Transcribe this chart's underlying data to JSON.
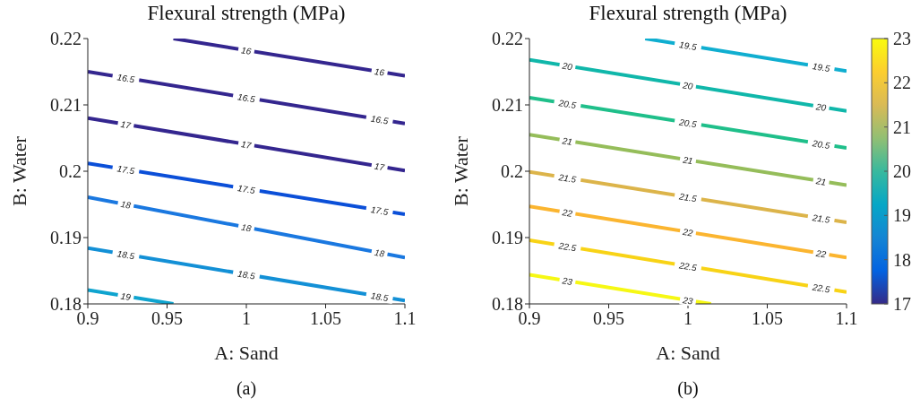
{
  "chart_data": [
    {
      "type": "line",
      "title": "Flexural strength (MPa)",
      "xlabel": "A: Sand",
      "ylabel": "B: Water",
      "annotations": [
        "(a)"
      ],
      "xlim": [
        0.9,
        1.1
      ],
      "xticks": [
        0.9,
        0.95,
        1,
        1.05,
        1.1
      ],
      "ylim": [
        0.18,
        0.22
      ],
      "yticks": [
        0.18,
        0.19,
        0.2,
        0.21,
        0.22
      ],
      "marker": "none",
      "line_style": "solid",
      "series": [
        {
          "name": "16",
          "color": "#34268f",
          "x": [
            0.954,
            1.1
          ],
          "values": [
            0.22,
            0.2144
          ]
        },
        {
          "name": "16.5",
          "color": "#34268f",
          "x": [
            0.9,
            1.1
          ],
          "values": [
            0.215,
            0.2072
          ]
        },
        {
          "name": "17",
          "color": "#34268f",
          "x": [
            0.9,
            1.1
          ],
          "values": [
            0.208,
            0.2001
          ]
        },
        {
          "name": "17.5",
          "color": "#0b4fd8",
          "x": [
            0.9,
            1.1
          ],
          "values": [
            0.2012,
            0.1935
          ]
        },
        {
          "name": "18",
          "color": "#1a78e0",
          "x": [
            0.9,
            1.1
          ],
          "values": [
            0.1961,
            0.187
          ]
        },
        {
          "name": "18.5",
          "color": "#1390d6",
          "x": [
            0.9,
            1.1
          ],
          "values": [
            0.1884,
            0.1805
          ]
        },
        {
          "name": "19",
          "color": "#0fa4cf",
          "x": [
            0.9,
            0.954
          ],
          "values": [
            0.1821,
            0.18
          ]
        }
      ]
    },
    {
      "type": "line",
      "title": "Flexural strength (MPa)",
      "xlabel": "A: Sand",
      "ylabel": "B: Water",
      "annotations": [
        "(b)"
      ],
      "xlim": [
        0.9,
        1.1
      ],
      "xticks": [
        0.9,
        0.95,
        1,
        1.05,
        1.1
      ],
      "ylim": [
        0.18,
        0.22
      ],
      "yticks": [
        0.18,
        0.19,
        0.2,
        0.21,
        0.22
      ],
      "clim": [
        17,
        23
      ],
      "cticks": [
        17,
        18,
        19,
        20,
        21,
        22,
        23
      ],
      "marker": "none",
      "line_style": "solid",
      "series": [
        {
          "name": "19.5",
          "color": "#10aed0",
          "x": [
            0.973,
            1.1
          ],
          "values": [
            0.22,
            0.2151
          ]
        },
        {
          "name": "20",
          "color": "#10b7aa",
          "x": [
            0.9,
            1.1
          ],
          "values": [
            0.2168,
            0.2091
          ]
        },
        {
          "name": "20.5",
          "color": "#1fbf8a",
          "x": [
            0.9,
            1.1
          ],
          "values": [
            0.2111,
            0.2035
          ]
        },
        {
          "name": "21",
          "color": "#95bd5a",
          "x": [
            0.9,
            1.1
          ],
          "values": [
            0.2055,
            0.1979
          ]
        },
        {
          "name": "21.5",
          "color": "#dcb44a",
          "x": [
            0.9,
            1.1
          ],
          "values": [
            0.1999,
            0.1923
          ]
        },
        {
          "name": "22",
          "color": "#fbb530",
          "x": [
            0.9,
            1.1
          ],
          "values": [
            0.1947,
            0.187
          ]
        },
        {
          "name": "22.5",
          "color": "#f8d316",
          "x": [
            0.9,
            1.1
          ],
          "values": [
            0.1896,
            0.1818
          ]
        },
        {
          "name": "23",
          "color": "#f6f814",
          "x": [
            0.9,
            1.0145
          ],
          "values": [
            0.1844,
            0.18
          ]
        }
      ]
    }
  ]
}
